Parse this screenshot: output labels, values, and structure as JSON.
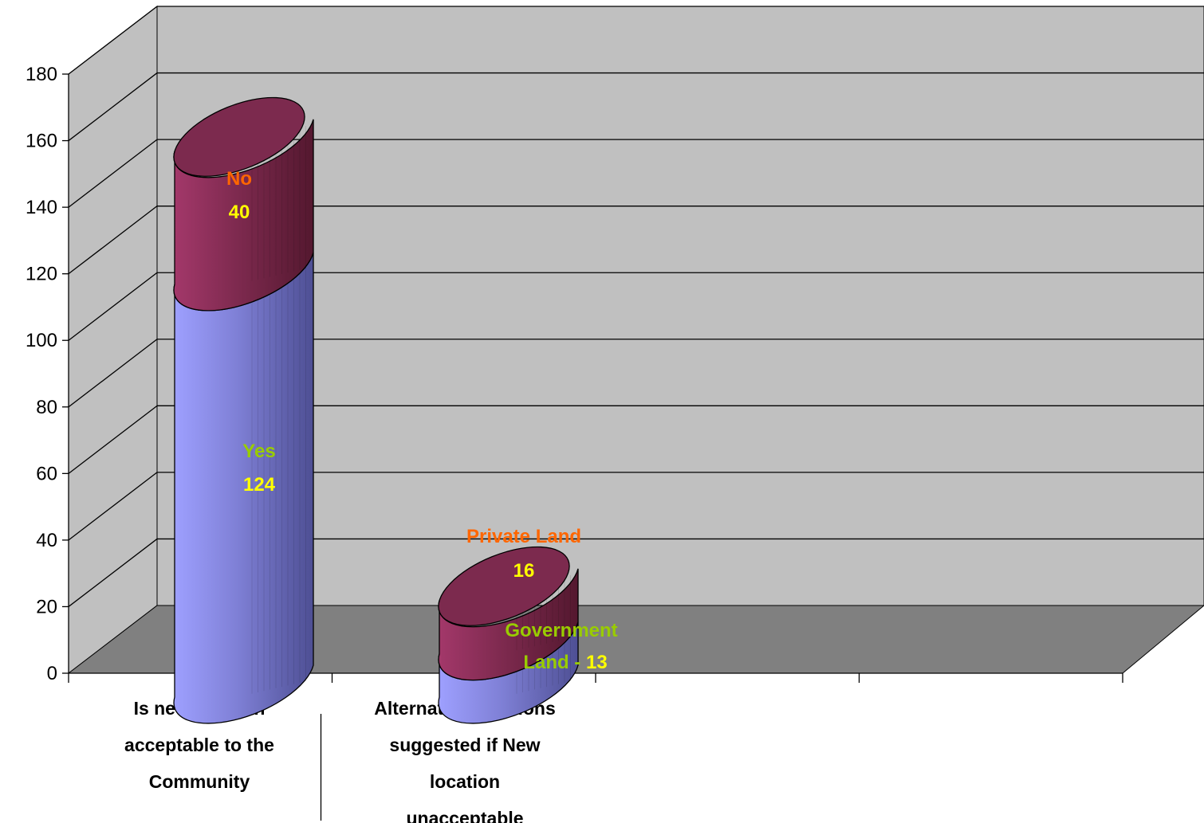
{
  "chart_data": {
    "type": "bar",
    "stacked": true,
    "style": "3d-cylinder",
    "ylim": [
      0,
      180
    ],
    "y_ticks": [
      "0",
      "20",
      "40",
      "60",
      "80",
      "100",
      "120",
      "140",
      "160",
      "180"
    ],
    "grid": true,
    "categories": [
      [
        "Is new location",
        "acceptable to the",
        "Community"
      ],
      [
        "AlternativeLocations",
        "suggested if New",
        "location",
        "unacceptable"
      ]
    ],
    "stacks": [
      {
        "segments": [
          {
            "name": "Yes",
            "value": 124,
            "label_name": "Yes",
            "label_value": "124",
            "color": "#8c8ce6"
          },
          {
            "name": "No",
            "value": 40,
            "label_name": "No",
            "label_value": "40",
            "color": "#8a2f55"
          }
        ]
      },
      {
        "segments": [
          {
            "name": "Government Land",
            "value": 13,
            "label_name": "Government",
            "label_value_prefix": "Land - ",
            "label_value": "13",
            "color": "#8c8ce6"
          },
          {
            "name": "Private Land",
            "value": 16,
            "label_name": "Private Land",
            "label_value": "16",
            "color": "#8a2f55"
          }
        ]
      }
    ],
    "label_colors": {
      "name_yes": "#99cc00",
      "name_no": "#ff6600",
      "value": "#ffff00"
    }
  }
}
